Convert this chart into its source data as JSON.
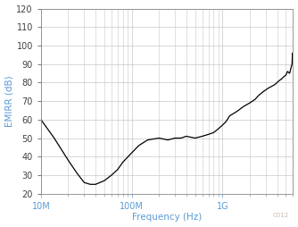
{
  "xlabel": "Frequency (Hz)",
  "ylabel": "EMIRR (dB)",
  "watermark": "C012",
  "xlim_log": [
    10000000.0,
    6000000000.0
  ],
  "ylim": [
    20,
    120
  ],
  "yticks": [
    20,
    30,
    40,
    50,
    60,
    70,
    80,
    90,
    100,
    110,
    120
  ],
  "line_color": "#000000",
  "axis_label_color": "#5b9bd5",
  "tick_label_color": "#404040",
  "background_color": "#ffffff",
  "plot_bg_color": "#ffffff",
  "grid_color": "#c8c8c8",
  "watermark_color": "#b0a090",
  "curve_x": [
    10000000.0,
    14000000.0,
    20000000.0,
    25000000.0,
    30000000.0,
    35000000.0,
    40000000.0,
    50000000.0,
    60000000.0,
    70000000.0,
    80000000.0,
    100000000.0,
    120000000.0,
    150000000.0,
    200000000.0,
    250000000.0,
    300000000.0,
    350000000.0,
    400000000.0,
    500000000.0,
    600000000.0,
    700000000.0,
    800000000.0,
    900000000.0,
    1000000000.0,
    1100000000.0,
    1200000000.0,
    1400000000.0,
    1500000000.0,
    1700000000.0,
    2000000000.0,
    2300000000.0,
    2500000000.0,
    2800000000.0,
    3000000000.0,
    3200000000.0,
    3500000000.0,
    3800000000.0,
    4000000000.0,
    4200000000.0,
    4500000000.0,
    4700000000.0,
    5000000000.0,
    5200000000.0,
    5500000000.0,
    5700000000.0,
    5850000000.0,
    5920000000.0,
    5970000000.0,
    6000000000.0
  ],
  "curve_y": [
    60,
    50,
    38,
    31,
    26,
    25,
    25,
    27,
    30,
    33,
    37,
    42,
    46,
    49,
    50,
    49,
    50,
    50,
    51,
    50,
    51,
    52,
    53,
    55,
    57,
    59,
    62,
    64,
    65,
    67,
    69,
    71,
    73,
    75,
    76,
    77,
    78,
    79,
    80,
    81,
    82,
    83,
    84,
    86,
    85,
    88,
    90,
    96,
    94,
    95
  ]
}
